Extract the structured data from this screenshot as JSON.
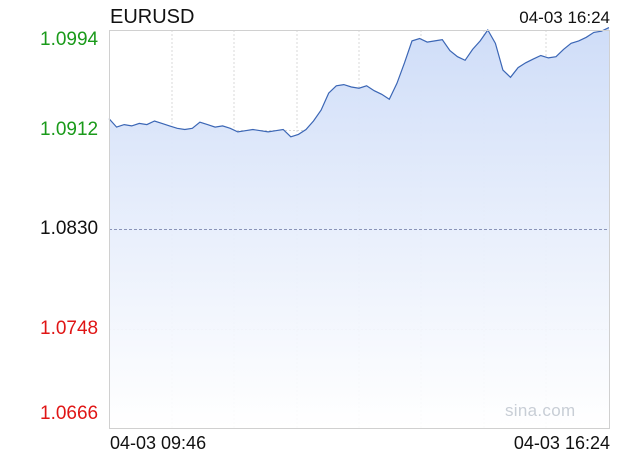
{
  "header": {
    "symbol": "EURUSD",
    "timestamp": "04-03 16:24"
  },
  "watermark": "sina.com",
  "colors": {
    "up": "#1a9a1a",
    "down": "#e01515",
    "neutral": "#111111",
    "line": "#3b66b5",
    "area_top": "#cfddf8",
    "area_bottom": "#ffffff",
    "grid": "#d8d8d8",
    "ref_line": "#8a93b8"
  },
  "chart_data": {
    "type": "area",
    "title": "EURUSD",
    "reference_price": 1.083,
    "ylim": [
      1.0666,
      1.0994
    ],
    "yticks": [
      {
        "label": "1.0994",
        "value": 1.0994,
        "tone": "up"
      },
      {
        "label": "1.0912",
        "value": 1.0912,
        "tone": "up"
      },
      {
        "label": "1.0830",
        "value": 1.083,
        "tone": "neutral"
      },
      {
        "label": "1.0748",
        "value": 1.0748,
        "tone": "down"
      },
      {
        "label": "1.0666",
        "value": 1.0666,
        "tone": "down"
      }
    ],
    "x_start_label": "04-03 09:46",
    "x_end_label": "04-03 16:24",
    "grid": true,
    "series": [
      {
        "x": [
          "09:46",
          "09:52",
          "09:58",
          "10:04",
          "10:10",
          "10:16",
          "10:22",
          "10:28",
          "10:34",
          "10:40",
          "10:46",
          "10:52",
          "10:58",
          "11:04",
          "11:10",
          "11:16",
          "11:22",
          "11:28",
          "11:34",
          "11:40",
          "11:46",
          "11:52",
          "11:58",
          "12:04",
          "12:10",
          "12:16",
          "12:22",
          "12:28",
          "12:34",
          "12:40",
          "12:46",
          "12:52",
          "12:58",
          "13:04",
          "13:10",
          "13:16",
          "13:22",
          "13:28",
          "13:34",
          "13:40",
          "13:46",
          "13:52",
          "13:58",
          "14:04",
          "14:10",
          "14:16",
          "14:22",
          "14:28",
          "14:34",
          "14:40",
          "14:46",
          "14:52",
          "14:58",
          "15:04",
          "15:10",
          "15:16",
          "15:22",
          "15:28",
          "15:34",
          "15:40",
          "15:46",
          "15:52",
          "15:58",
          "16:04",
          "16:10",
          "16:18",
          "16:24"
        ],
        "values": [
          1.0921,
          1.0914,
          1.0916,
          1.0915,
          1.0917,
          1.0916,
          1.0919,
          1.0917,
          1.0915,
          1.0913,
          1.0912,
          1.0913,
          1.0918,
          1.0916,
          1.0914,
          1.0915,
          1.0913,
          1.091,
          1.0911,
          1.0912,
          1.0911,
          1.091,
          1.0911,
          1.0912,
          1.0906,
          1.0908,
          1.0912,
          1.0919,
          1.0928,
          1.0942,
          1.0948,
          1.0949,
          1.0947,
          1.0946,
          1.0948,
          1.0944,
          1.0941,
          1.0937,
          1.095,
          1.0967,
          1.0985,
          1.0987,
          1.0984,
          1.0985,
          1.0986,
          1.0977,
          1.0972,
          1.0969,
          1.0978,
          1.0985,
          1.0994,
          1.0983,
          1.0961,
          1.0955,
          1.0963,
          1.0967,
          1.097,
          1.0973,
          1.0971,
          1.0972,
          1.0978,
          1.0983,
          1.0985,
          1.0988,
          1.0992,
          1.0993,
          1.0996
        ]
      }
    ]
  }
}
